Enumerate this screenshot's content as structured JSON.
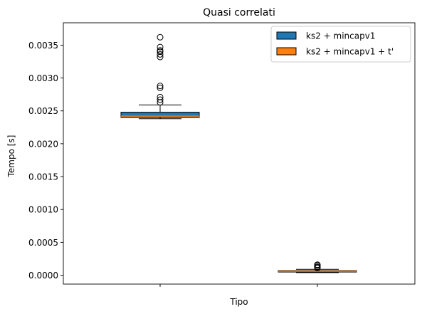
{
  "chart_data": {
    "type": "boxplot",
    "title": "Quasi correlati",
    "xlabel": "Tipo",
    "ylabel": "Tempo [s]",
    "ylim": [
      -0.000135,
      0.00384
    ],
    "yticks": [
      0.0,
      0.0005,
      0.001,
      0.0015,
      0.002,
      0.0025,
      0.003,
      0.0035
    ],
    "ytick_labels": [
      "0.0000",
      "0.0005",
      "0.0010",
      "0.0015",
      "0.0020",
      "0.0025",
      "0.0030",
      "0.0035"
    ],
    "grid": false,
    "legend_position": "top-right",
    "series": [
      {
        "name": "ks2 + mincapv1",
        "color": "#1f77b4",
        "whisker_low": 0.00238,
        "q1": 0.0024,
        "median": 0.00242,
        "q3": 0.00248,
        "whisker_high": 0.00259,
        "outliers": [
          0.00263,
          0.00267,
          0.00271,
          0.00285,
          0.00288,
          0.00332,
          0.00336,
          0.0034,
          0.00342,
          0.00347,
          0.00362
        ]
      },
      {
        "name": "ks2 + mincapv1 + t'",
        "color": "#ff7f0e",
        "whisker_low": 4e-05,
        "q1": 5e-05,
        "median": 6e-05,
        "q3": 7e-05,
        "whisker_high": 9e-05,
        "outliers": [
          0.00011,
          0.00012,
          0.00013,
          0.00015,
          0.00016
        ]
      }
    ]
  }
}
